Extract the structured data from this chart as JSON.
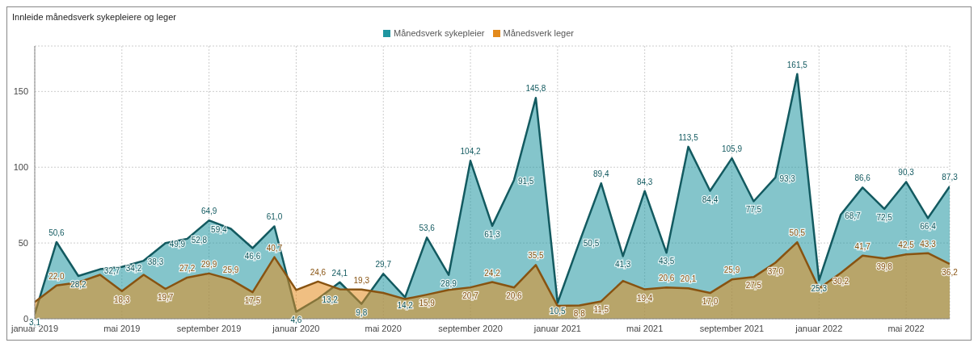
{
  "chart_data": {
    "type": "area",
    "title": "Innleide månedsverk sykepleiere og leger",
    "categories": [
      "januar 2019",
      null,
      null,
      null,
      "mai 2019",
      null,
      null,
      null,
      "september 2019",
      null,
      null,
      null,
      "januar 2020",
      null,
      null,
      null,
      "mai 2020",
      null,
      null,
      null,
      "september 2020",
      null,
      null,
      null,
      "januar 2021",
      null,
      null,
      null,
      "mai 2021",
      null,
      null,
      null,
      "september 2021",
      null,
      null,
      null,
      "januar 2022",
      null,
      null,
      null,
      "mai 2022",
      null,
      null
    ],
    "series": [
      {
        "name": "Månedsverk sykepleier",
        "color": "#1f96a0",
        "values": [
          3.1,
          50.6,
          28.2,
          32.7,
          34.2,
          38.3,
          49.9,
          52.8,
          64.9,
          59.4,
          46.6,
          61.0,
          4.6,
          13.2,
          24.1,
          9.8,
          29.7,
          14.2,
          53.6,
          28.9,
          104.2,
          61.3,
          91.5,
          145.8,
          10.5,
          50.5,
          89.4,
          41.3,
          84.3,
          43.5,
          113.5,
          84.4,
          105.9,
          77.5,
          93.3,
          161.5,
          25.3,
          68.7,
          86.6,
          72.5,
          90.3,
          66.4,
          87.3
        ],
        "value_labels": [
          "3,1",
          "50,6",
          "28,2",
          "32,7",
          "34,2",
          "38,3",
          "49,9",
          "52,8",
          "64,9",
          "59,4",
          "46,6",
          "61,0",
          "4,6",
          "13,2",
          "24,1",
          "9,8",
          "29,7",
          "14,2",
          "53,6",
          "28,9",
          "104,2",
          "61,3",
          "91,5",
          "145,8",
          "10,5",
          "50,5",
          "89,4",
          "41,3",
          "84,3",
          "43,5",
          "113,5",
          "84,4",
          "105,9",
          "77,5",
          "93,3",
          "161,5",
          "25,3",
          "68,7",
          "86,6",
          "72,5",
          "90,3",
          "66,4",
          "87,3"
        ]
      },
      {
        "name": "Månedsverk leger",
        "color": "#e38a1c",
        "values": [
          11,
          22.0,
          24,
          29,
          18.3,
          29,
          19.7,
          27.2,
          29.9,
          25.9,
          17.5,
          40.7,
          19,
          24.6,
          19.5,
          19.3,
          17,
          13,
          15.9,
          19,
          20.7,
          24.2,
          20.6,
          35.5,
          8.5,
          8.8,
          11.5,
          25,
          19.4,
          20.6,
          20.1,
          17.0,
          25.9,
          27.5,
          37.0,
          50.5,
          20,
          30.2,
          41.7,
          39.8,
          42.5,
          43.3,
          36.2
        ],
        "value_labels": [
          null,
          "22,0",
          null,
          null,
          "18,3",
          null,
          "19,7",
          "27,2",
          "29,9",
          "25,9",
          "17,5",
          "40,7",
          null,
          "24,6",
          null,
          "19,3",
          null,
          null,
          "15,9",
          null,
          "20,7",
          "24,2",
          "20,6",
          "35,5",
          null,
          "8,8",
          "11,5",
          null,
          "19,4",
          "20,6",
          "20,1",
          "17,0",
          "25,9",
          "27,5",
          "37,0",
          "50,5",
          null,
          "30,2",
          "41,7",
          "39,8",
          "42,5",
          "43,3",
          "36,2"
        ]
      }
    ],
    "ylim": [
      0,
      180
    ],
    "yticks": [
      0,
      50,
      100,
      150
    ],
    "grid": true,
    "legend": "top",
    "marker": "none",
    "line_style": "solid"
  }
}
